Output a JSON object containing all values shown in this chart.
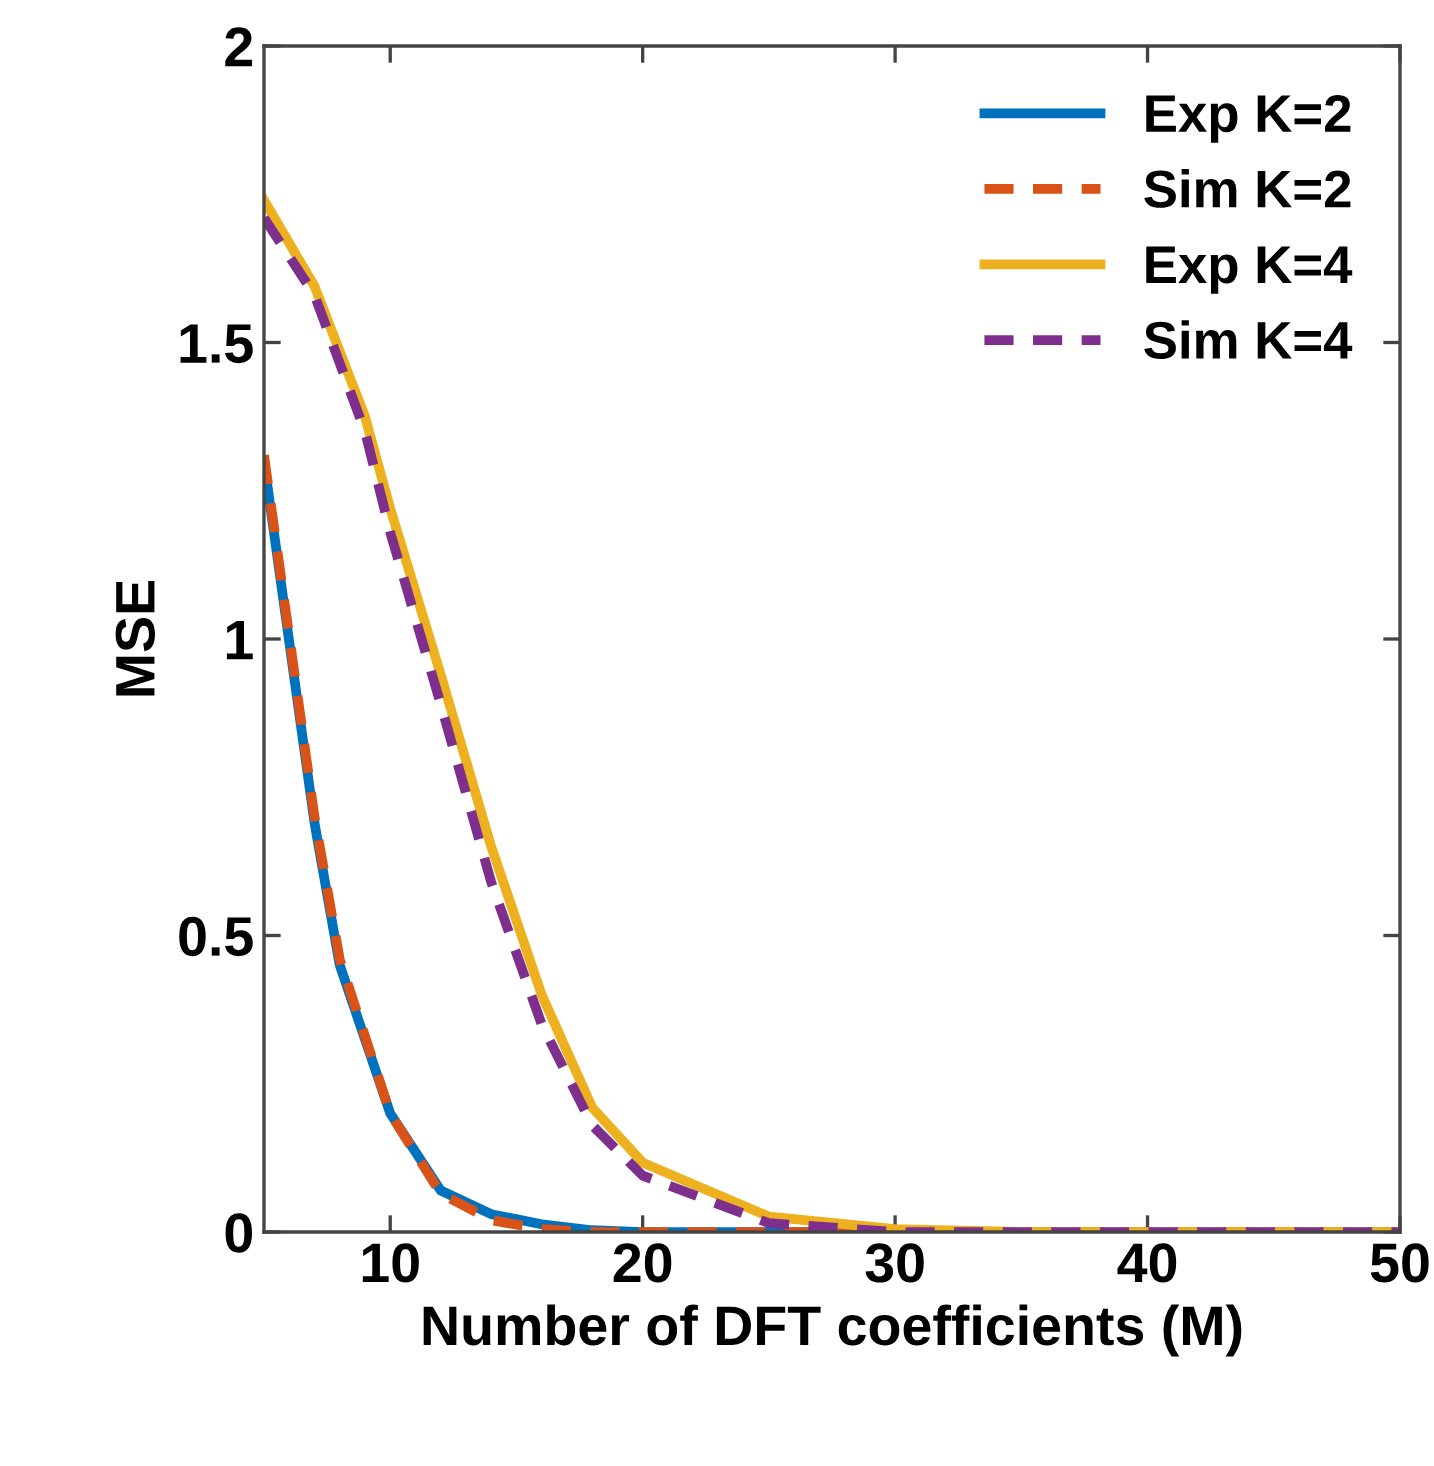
{
  "chart_data": {
    "type": "line",
    "xlabel": "Number of DFT coefficients (M)",
    "ylabel": "MSE",
    "xlim": [
      5,
      50
    ],
    "ylim": [
      0,
      2
    ],
    "xticks": [
      10,
      20,
      30,
      40,
      50
    ],
    "yticks": [
      0,
      0.5,
      1,
      1.5,
      2
    ],
    "grid": false,
    "legend": "top right",
    "marker": "none",
    "series": [
      {
        "name": "Exp K=2",
        "color": "#0072bd",
        "line_style": "solid",
        "x": [
          5,
          7,
          8,
          10,
          12,
          14,
          16,
          18,
          20,
          25,
          30
        ],
        "values": [
          1.3,
          0.69,
          0.45,
          0.2,
          0.07,
          0.03,
          0.013,
          0.003,
          0,
          0,
          0
        ]
      },
      {
        "name": "Sim K=2",
        "color": "#d95319",
        "line_style": "dashed",
        "x": [
          5,
          7,
          8,
          10,
          12,
          14,
          16,
          18,
          20,
          25,
          30,
          35,
          40,
          45,
          50
        ],
        "values": [
          1.31,
          0.7,
          0.46,
          0.2,
          0.065,
          0.02,
          0.005,
          0,
          0,
          0,
          0,
          0,
          0,
          0,
          0
        ]
      },
      {
        "name": "Exp K=4",
        "color": "#edb120",
        "line_style": "solid",
        "x": [
          5,
          7,
          9,
          10,
          12,
          14,
          16,
          18,
          20,
          25,
          30,
          35,
          40,
          45,
          50
        ],
        "values": [
          1.74,
          1.595,
          1.375,
          1.22,
          0.94,
          0.65,
          0.4,
          0.21,
          0.117,
          0.026,
          0.005,
          0,
          0,
          0,
          0
        ]
      },
      {
        "name": "Sim K=4",
        "color": "#7e2f8e",
        "line_style": "dashed",
        "x": [
          5,
          7,
          9,
          10,
          12,
          14,
          16,
          18,
          20,
          25,
          30,
          35,
          40,
          45,
          50
        ],
        "values": [
          1.71,
          1.58,
          1.35,
          1.18,
          0.89,
          0.59,
          0.35,
          0.18,
          0.095,
          0.015,
          0,
          0,
          0,
          0,
          0
        ]
      }
    ]
  }
}
